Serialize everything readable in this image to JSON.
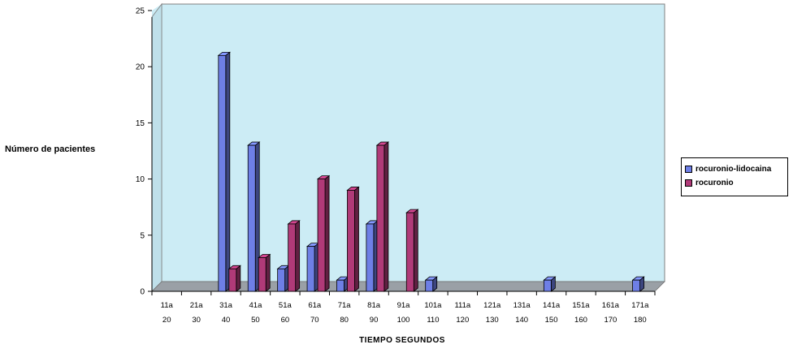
{
  "chart_data": {
    "type": "bar",
    "title": "",
    "xlabel": "TIEMPO SEGUNDOS",
    "ylabel": "Número de pacientes",
    "ylim": [
      0,
      25
    ],
    "yticks": [
      0,
      5,
      10,
      15,
      20,
      25
    ],
    "categories": [
      [
        "11a",
        "20"
      ],
      [
        "21a",
        "30"
      ],
      [
        "31a",
        "40"
      ],
      [
        "41a",
        "50"
      ],
      [
        "51a",
        "60"
      ],
      [
        "61a",
        "70"
      ],
      [
        "71a",
        "80"
      ],
      [
        "81a",
        "90"
      ],
      [
        "91a",
        "100"
      ],
      [
        "101a",
        "110"
      ],
      [
        "111a",
        "120"
      ],
      [
        "121a",
        "130"
      ],
      [
        "131a",
        "140"
      ],
      [
        "141a",
        "150"
      ],
      [
        "151a",
        "160"
      ],
      [
        "161a",
        "170"
      ],
      [
        "171a",
        "180"
      ]
    ],
    "series": [
      {
        "name": "rocuronio-lidocaina",
        "color": "#6e7fe6",
        "values": [
          0,
          0,
          21,
          13,
          2,
          4,
          1,
          6,
          0,
          1,
          0,
          0,
          0,
          1,
          0,
          0,
          1
        ]
      },
      {
        "name": "rocuronio",
        "color": "#b03a78",
        "values": [
          0,
          0,
          2,
          3,
          6,
          10,
          9,
          13,
          7,
          0,
          0,
          0,
          0,
          0,
          0,
          0,
          0
        ]
      }
    ],
    "grid": false,
    "legend_position": "right",
    "plot_background": "#ccecf5"
  }
}
